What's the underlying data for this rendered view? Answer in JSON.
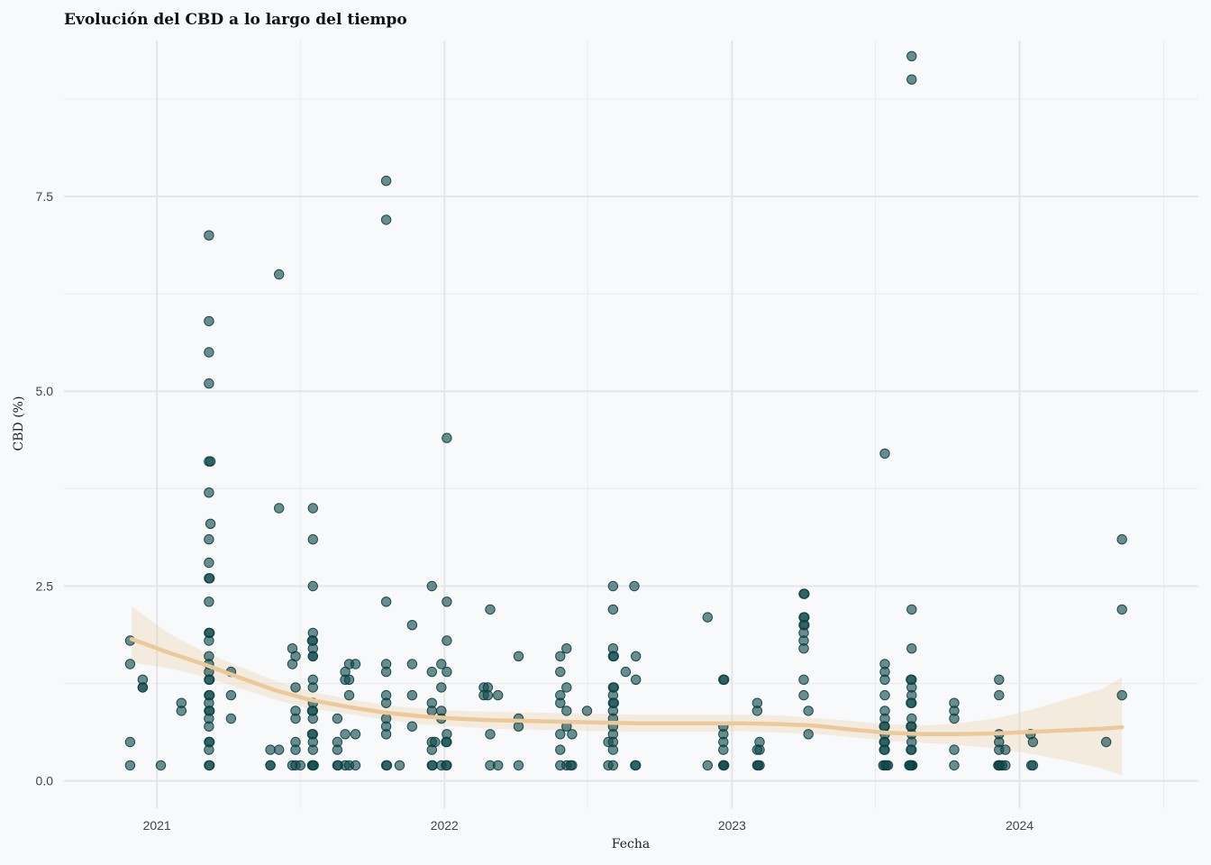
{
  "chart_data": {
    "type": "scatter",
    "title": "Evolución del CBD a lo largo del tiempo",
    "xlabel": "Fecha",
    "ylabel": "CBD (%)",
    "xlim": [
      "2020-09-05",
      "2024-08-15"
    ],
    "ylim": [
      -0.35,
      9.5
    ],
    "x_ticks": [
      "2021-01-01",
      "2022-01-01",
      "2023-01-01",
      "2024-01-01"
    ],
    "x_tick_labels": [
      "2021",
      "2022",
      "2023",
      "2024"
    ],
    "y_ticks": [
      0,
      2.5,
      5,
      7.5
    ],
    "y_tick_labels": [
      "0.0",
      "2.5",
      "5.0",
      "7.5"
    ],
    "grid": true,
    "colors": {
      "points": "#0f4a4c",
      "smooth": "#ecc99b",
      "background": "#f7f9fb"
    },
    "points": [
      [
        "2020-11-28",
        1.8
      ],
      [
        "2020-11-28",
        1.5
      ],
      [
        "2020-11-28",
        0.5
      ],
      [
        "2020-11-28",
        0.2
      ],
      [
        "2020-12-14",
        1.3
      ],
      [
        "2020-12-14",
        1.2
      ],
      [
        "2020-12-14",
        1.2
      ],
      [
        "2021-01-06",
        0.2
      ],
      [
        "2021-02-01",
        1.0
      ],
      [
        "2021-02-01",
        0.9
      ],
      [
        "2021-03-08",
        7.0
      ],
      [
        "2021-03-08",
        5.9
      ],
      [
        "2021-03-08",
        5.5
      ],
      [
        "2021-03-08",
        5.1
      ],
      [
        "2021-03-08",
        4.1
      ],
      [
        "2021-03-10",
        4.1
      ],
      [
        "2021-03-08",
        3.7
      ],
      [
        "2021-03-10",
        3.3
      ],
      [
        "2021-03-08",
        3.1
      ],
      [
        "2021-03-08",
        2.8
      ],
      [
        "2021-03-08",
        2.6
      ],
      [
        "2021-03-09",
        2.6
      ],
      [
        "2021-03-08",
        2.3
      ],
      [
        "2021-03-08",
        1.9
      ],
      [
        "2021-03-09",
        1.9
      ],
      [
        "2021-03-08",
        1.8
      ],
      [
        "2021-03-08",
        1.6
      ],
      [
        "2021-03-08",
        1.5
      ],
      [
        "2021-03-08",
        1.4
      ],
      [
        "2021-03-09",
        1.3
      ],
      [
        "2021-03-08",
        1.3
      ],
      [
        "2021-03-08",
        1.1
      ],
      [
        "2021-03-09",
        1.1
      ],
      [
        "2021-03-08",
        1.0
      ],
      [
        "2021-03-08",
        0.9
      ],
      [
        "2021-03-09",
        0.9
      ],
      [
        "2021-03-08",
        0.8
      ],
      [
        "2021-03-08",
        0.7
      ],
      [
        "2021-03-08",
        0.5
      ],
      [
        "2021-03-09",
        0.5
      ],
      [
        "2021-03-08",
        0.4
      ],
      [
        "2021-03-08",
        0.2
      ],
      [
        "2021-03-09",
        0.2
      ],
      [
        "2021-04-05",
        1.4
      ],
      [
        "2021-04-05",
        1.1
      ],
      [
        "2021-04-05",
        0.8
      ],
      [
        "2021-05-25",
        0.4
      ],
      [
        "2021-05-25",
        0.2
      ],
      [
        "2021-05-25",
        0.2
      ],
      [
        "2021-06-05",
        6.5
      ],
      [
        "2021-06-05",
        3.5
      ],
      [
        "2021-06-05",
        0.4
      ],
      [
        "2021-06-22",
        1.7
      ],
      [
        "2021-06-22",
        1.5
      ],
      [
        "2021-06-22",
        0.2
      ],
      [
        "2021-06-26",
        1.6
      ],
      [
        "2021-06-26",
        1.2
      ],
      [
        "2021-06-26",
        0.9
      ],
      [
        "2021-06-26",
        0.8
      ],
      [
        "2021-06-26",
        0.5
      ],
      [
        "2021-06-26",
        0.4
      ],
      [
        "2021-06-26",
        0.2
      ],
      [
        "2021-07-02",
        0.2
      ],
      [
        "2021-07-18",
        3.5
      ],
      [
        "2021-07-18",
        3.1
      ],
      [
        "2021-07-18",
        2.5
      ],
      [
        "2021-07-18",
        1.9
      ],
      [
        "2021-07-18",
        1.8
      ],
      [
        "2021-07-17",
        1.8
      ],
      [
        "2021-07-18",
        1.7
      ],
      [
        "2021-07-18",
        1.6
      ],
      [
        "2021-07-18",
        1.6
      ],
      [
        "2021-07-18",
        1.3
      ],
      [
        "2021-07-18",
        1.2
      ],
      [
        "2021-07-18",
        1.0
      ],
      [
        "2021-07-18",
        0.9
      ],
      [
        "2021-07-17",
        0.9
      ],
      [
        "2021-07-18",
        0.8
      ],
      [
        "2021-07-18",
        0.6
      ],
      [
        "2021-07-17",
        0.6
      ],
      [
        "2021-07-18",
        0.5
      ],
      [
        "2021-07-18",
        0.4
      ],
      [
        "2021-07-18",
        0.2
      ],
      [
        "2021-07-17",
        0.2
      ],
      [
        "2021-07-19",
        0.2
      ],
      [
        "2021-08-18",
        0.8
      ],
      [
        "2021-08-18",
        0.5
      ],
      [
        "2021-08-18",
        0.4
      ],
      [
        "2021-08-18",
        0.2
      ],
      [
        "2021-08-19",
        0.2
      ],
      [
        "2021-08-28",
        1.4
      ],
      [
        "2021-08-28",
        1.3
      ],
      [
        "2021-08-28",
        0.6
      ],
      [
        "2021-08-28",
        0.2
      ],
      [
        "2021-09-02",
        1.5
      ],
      [
        "2021-09-02",
        1.3
      ],
      [
        "2021-09-02",
        1.1
      ],
      [
        "2021-09-02",
        0.2
      ],
      [
        "2021-09-10",
        1.5
      ],
      [
        "2021-09-10",
        0.6
      ],
      [
        "2021-09-10",
        0.2
      ],
      [
        "2021-10-19",
        7.7
      ],
      [
        "2021-10-19",
        7.2
      ],
      [
        "2021-10-19",
        2.3
      ],
      [
        "2021-10-19",
        1.5
      ],
      [
        "2021-10-19",
        1.4
      ],
      [
        "2021-10-19",
        1.1
      ],
      [
        "2021-10-19",
        1.0
      ],
      [
        "2021-10-19",
        0.8
      ],
      [
        "2021-10-19",
        0.7
      ],
      [
        "2021-10-19",
        0.6
      ],
      [
        "2021-10-19",
        0.2
      ],
      [
        "2021-10-20",
        0.2
      ],
      [
        "2021-11-05",
        0.2
      ],
      [
        "2021-11-21",
        2.0
      ],
      [
        "2021-11-21",
        1.5
      ],
      [
        "2021-11-21",
        1.1
      ],
      [
        "2021-11-21",
        0.7
      ],
      [
        "2021-12-16",
        2.5
      ],
      [
        "2021-12-16",
        1.4
      ],
      [
        "2021-12-16",
        1.0
      ],
      [
        "2021-12-16",
        0.9
      ],
      [
        "2021-12-16",
        0.5
      ],
      [
        "2021-12-16",
        0.4
      ],
      [
        "2021-12-16",
        0.2
      ],
      [
        "2021-12-17",
        0.2
      ],
      [
        "2021-12-20",
        0.5
      ],
      [
        "2021-12-28",
        1.5
      ],
      [
        "2021-12-28",
        1.2
      ],
      [
        "2021-12-28",
        0.9
      ],
      [
        "2021-12-28",
        0.8
      ],
      [
        "2021-12-28",
        0.2
      ],
      [
        "2022-01-04",
        4.4
      ],
      [
        "2022-01-04",
        2.3
      ],
      [
        "2022-01-04",
        1.8
      ],
      [
        "2022-01-04",
        1.4
      ],
      [
        "2022-01-04",
        0.6
      ],
      [
        "2022-01-04",
        0.5
      ],
      [
        "2022-01-03",
        0.5
      ],
      [
        "2022-01-04",
        0.2
      ],
      [
        "2022-01-03",
        0.2
      ],
      [
        "2022-02-20",
        1.2
      ],
      [
        "2022-02-20",
        1.1
      ],
      [
        "2022-02-25",
        1.2
      ],
      [
        "2022-02-25",
        1.1
      ],
      [
        "2022-02-28",
        2.2
      ],
      [
        "2022-02-28",
        0.6
      ],
      [
        "2022-02-28",
        0.2
      ],
      [
        "2022-03-10",
        1.1
      ],
      [
        "2022-03-10",
        0.2
      ],
      [
        "2022-04-05",
        0.8
      ],
      [
        "2022-04-05",
        0.7
      ],
      [
        "2022-04-05",
        0.2
      ],
      [
        "2022-04-05",
        1.6
      ],
      [
        "2022-05-28",
        1.6
      ],
      [
        "2022-05-28",
        1.4
      ],
      [
        "2022-05-28",
        1.1
      ],
      [
        "2022-05-28",
        1.0
      ],
      [
        "2022-05-28",
        0.6
      ],
      [
        "2022-05-28",
        0.4
      ],
      [
        "2022-05-28",
        0.2
      ],
      [
        "2022-06-05",
        1.7
      ],
      [
        "2022-06-05",
        1.2
      ],
      [
        "2022-06-05",
        0.9
      ],
      [
        "2022-06-05",
        0.7
      ],
      [
        "2022-06-05",
        0.2
      ],
      [
        "2022-06-12",
        0.6
      ],
      [
        "2022-06-12",
        0.2
      ],
      [
        "2022-06-10",
        0.2
      ],
      [
        "2022-07-01",
        0.9
      ],
      [
        "2022-07-28",
        0.5
      ],
      [
        "2022-07-28",
        0.2
      ],
      [
        "2022-08-03",
        2.5
      ],
      [
        "2022-08-03",
        2.2
      ],
      [
        "2022-08-03",
        1.7
      ],
      [
        "2022-08-03",
        1.6
      ],
      [
        "2022-08-03",
        1.2
      ],
      [
        "2022-08-03",
        1.1
      ],
      [
        "2022-08-03",
        1.0
      ],
      [
        "2022-08-03",
        0.9
      ],
      [
        "2022-08-03",
        0.8
      ],
      [
        "2022-08-03",
        0.7
      ],
      [
        "2022-08-03",
        0.6
      ],
      [
        "2022-08-03",
        0.5
      ],
      [
        "2022-08-03",
        0.4
      ],
      [
        "2022-08-03",
        0.2
      ],
      [
        "2022-08-04",
        1.2
      ],
      [
        "2022-08-04",
        1.0
      ],
      [
        "2022-08-04",
        1.6
      ],
      [
        "2022-08-19",
        1.4
      ],
      [
        "2022-08-30",
        2.5
      ],
      [
        "2022-09-01",
        1.6
      ],
      [
        "2022-09-01",
        1.3
      ],
      [
        "2022-08-31",
        0.2
      ],
      [
        "2022-09-01",
        0.2
      ],
      [
        "2022-12-01",
        2.1
      ],
      [
        "2022-12-01",
        0.2
      ],
      [
        "2022-12-21",
        1.3
      ],
      [
        "2022-12-21",
        0.7
      ],
      [
        "2022-12-21",
        0.6
      ],
      [
        "2022-12-21",
        0.5
      ],
      [
        "2022-12-21",
        0.4
      ],
      [
        "2022-12-21",
        0.2
      ],
      [
        "2022-12-22",
        0.2
      ],
      [
        "2022-12-22",
        1.3
      ],
      [
        "2022-12-21",
        0.2
      ],
      [
        "2023-02-02",
        1.0
      ],
      [
        "2023-02-02",
        0.9
      ],
      [
        "2023-02-02",
        0.4
      ],
      [
        "2023-02-02",
        0.2
      ],
      [
        "2023-02-05",
        0.5
      ],
      [
        "2023-02-05",
        0.4
      ],
      [
        "2023-02-05",
        0.2
      ],
      [
        "2023-02-03",
        0.2
      ],
      [
        "2023-04-02",
        2.4
      ],
      [
        "2023-04-03",
        2.4
      ],
      [
        "2023-04-02",
        2.1
      ],
      [
        "2023-04-03",
        2.1
      ],
      [
        "2023-04-02",
        2.0
      ],
      [
        "2023-04-03",
        2.0
      ],
      [
        "2023-04-02",
        1.9
      ],
      [
        "2023-04-02",
        1.8
      ],
      [
        "2023-04-02",
        1.7
      ],
      [
        "2023-04-02",
        1.3
      ],
      [
        "2023-04-02",
        1.1
      ],
      [
        "2023-04-08",
        0.9
      ],
      [
        "2023-04-08",
        0.6
      ],
      [
        "2023-07-14",
        4.2
      ],
      [
        "2023-07-14",
        1.5
      ],
      [
        "2023-07-14",
        1.4
      ],
      [
        "2023-07-14",
        1.3
      ],
      [
        "2023-07-14",
        1.1
      ],
      [
        "2023-07-14",
        0.9
      ],
      [
        "2023-07-14",
        0.8
      ],
      [
        "2023-07-14",
        0.7
      ],
      [
        "2023-07-14",
        0.6
      ],
      [
        "2023-07-14",
        0.5
      ],
      [
        "2023-07-14",
        0.4
      ],
      [
        "2023-07-14",
        0.2
      ],
      [
        "2023-07-12",
        0.2
      ],
      [
        "2023-07-13",
        0.7
      ],
      [
        "2023-07-13",
        0.5
      ],
      [
        "2023-07-13",
        0.4
      ],
      [
        "2023-07-16",
        0.2
      ],
      [
        "2023-07-18",
        0.2
      ],
      [
        "2023-08-17",
        9.3
      ],
      [
        "2023-08-17",
        9.0
      ],
      [
        "2023-08-17",
        2.2
      ],
      [
        "2023-08-17",
        1.7
      ],
      [
        "2023-08-17",
        1.3
      ],
      [
        "2023-08-16",
        1.3
      ],
      [
        "2023-08-17",
        1.2
      ],
      [
        "2023-08-17",
        1.1
      ],
      [
        "2023-08-17",
        1.0
      ],
      [
        "2023-08-16",
        1.0
      ],
      [
        "2023-08-17",
        0.8
      ],
      [
        "2023-08-17",
        0.7
      ],
      [
        "2023-08-16",
        0.7
      ],
      [
        "2023-08-17",
        0.6
      ],
      [
        "2023-08-17",
        0.5
      ],
      [
        "2023-08-17",
        0.4
      ],
      [
        "2023-08-16",
        0.4
      ],
      [
        "2023-08-17",
        0.2
      ],
      [
        "2023-08-16",
        0.2
      ],
      [
        "2023-08-18",
        0.2
      ],
      [
        "2023-08-15",
        0.2
      ],
      [
        "2023-08-14",
        0.2
      ],
      [
        "2023-10-10",
        1.0
      ],
      [
        "2023-10-10",
        0.9
      ],
      [
        "2023-10-10",
        0.8
      ],
      [
        "2023-10-10",
        0.4
      ],
      [
        "2023-10-10",
        0.2
      ],
      [
        "2023-12-06",
        1.3
      ],
      [
        "2023-12-06",
        1.1
      ],
      [
        "2023-12-06",
        0.6
      ],
      [
        "2023-12-06",
        0.5
      ],
      [
        "2023-12-06",
        0.4
      ],
      [
        "2023-12-06",
        0.2
      ],
      [
        "2023-12-05",
        0.2
      ],
      [
        "2023-12-07",
        0.2
      ],
      [
        "2023-12-10",
        0.2
      ],
      [
        "2023-12-14",
        0.4
      ],
      [
        "2023-12-14",
        0.2
      ],
      [
        "2024-01-15",
        0.6
      ],
      [
        "2024-01-18",
        0.5
      ],
      [
        "2024-01-16",
        0.2
      ],
      [
        "2024-01-18",
        0.2
      ],
      [
        "2024-04-20",
        0.5
      ],
      [
        "2024-05-10",
        3.1
      ],
      [
        "2024-05-10",
        2.2
      ],
      [
        "2024-05-10",
        1.1
      ]
    ],
    "smooth": [
      [
        "2020-11-30",
        1.82,
        1.52,
        2.24
      ],
      [
        "2021-01-15",
        1.65,
        1.45,
        1.9
      ],
      [
        "2021-03-01",
        1.5,
        1.34,
        1.66
      ],
      [
        "2021-04-15",
        1.33,
        1.19,
        1.47
      ],
      [
        "2021-06-01",
        1.16,
        1.04,
        1.28
      ],
      [
        "2021-07-15",
        1.04,
        0.93,
        1.15
      ],
      [
        "2021-09-01",
        0.95,
        0.86,
        1.05
      ],
      [
        "2021-10-15",
        0.88,
        0.79,
        0.98
      ],
      [
        "2021-12-01",
        0.83,
        0.73,
        0.93
      ],
      [
        "2022-01-15",
        0.8,
        0.7,
        0.9
      ],
      [
        "2022-03-01",
        0.78,
        0.67,
        0.89
      ],
      [
        "2022-04-15",
        0.77,
        0.66,
        0.88
      ],
      [
        "2022-06-01",
        0.76,
        0.65,
        0.87
      ],
      [
        "2022-07-15",
        0.75,
        0.64,
        0.86
      ],
      [
        "2022-09-01",
        0.74,
        0.63,
        0.85
      ],
      [
        "2022-10-15",
        0.74,
        0.63,
        0.85
      ],
      [
        "2022-12-01",
        0.74,
        0.63,
        0.85
      ],
      [
        "2023-01-15",
        0.74,
        0.64,
        0.85
      ],
      [
        "2023-03-01",
        0.73,
        0.62,
        0.84
      ],
      [
        "2023-04-15",
        0.71,
        0.61,
        0.81
      ],
      [
        "2023-06-01",
        0.66,
        0.56,
        0.77
      ],
      [
        "2023-07-15",
        0.62,
        0.52,
        0.73
      ],
      [
        "2023-09-01",
        0.6,
        0.49,
        0.71
      ],
      [
        "2023-10-15",
        0.6,
        0.46,
        0.74
      ],
      [
        "2023-12-01",
        0.61,
        0.42,
        0.8
      ],
      [
        "2024-01-15",
        0.63,
        0.35,
        0.91
      ],
      [
        "2024-03-01",
        0.65,
        0.26,
        1.05
      ],
      [
        "2024-04-15",
        0.67,
        0.16,
        1.18
      ],
      [
        "2024-05-10",
        0.69,
        0.07,
        1.33
      ]
    ]
  }
}
